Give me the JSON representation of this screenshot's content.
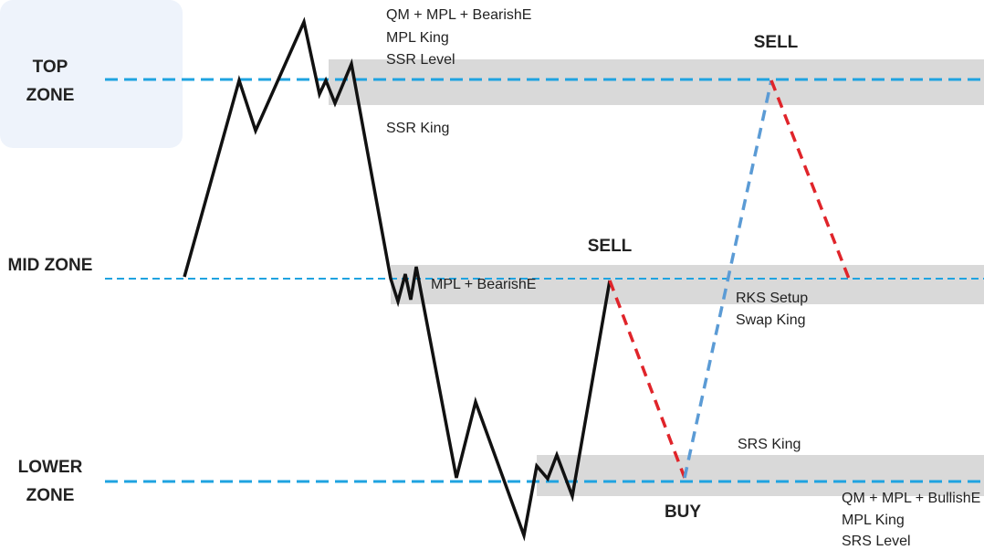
{
  "zones": [
    {
      "lines": [
        "TOP",
        "ZONE"
      ]
    },
    {
      "lines": [
        "MID ZONE"
      ]
    },
    {
      "lines": [
        "LOWER",
        "ZONE"
      ]
    }
  ],
  "annotations": {
    "top_level": [
      "QM + MPL + BearishE",
      "MPL King",
      "SSR Level"
    ],
    "ssr_king": "SSR King",
    "sell_top": "SELL",
    "sell_mid": "SELL",
    "mid_level": "MPL + BearishE",
    "rks": [
      "RKS Setup",
      "Swap King"
    ],
    "srs_king": "SRS King",
    "buy": "BUY",
    "lower_level": [
      "QM + MPL + BullishE",
      "MPL King",
      "SRS Level"
    ]
  }
}
